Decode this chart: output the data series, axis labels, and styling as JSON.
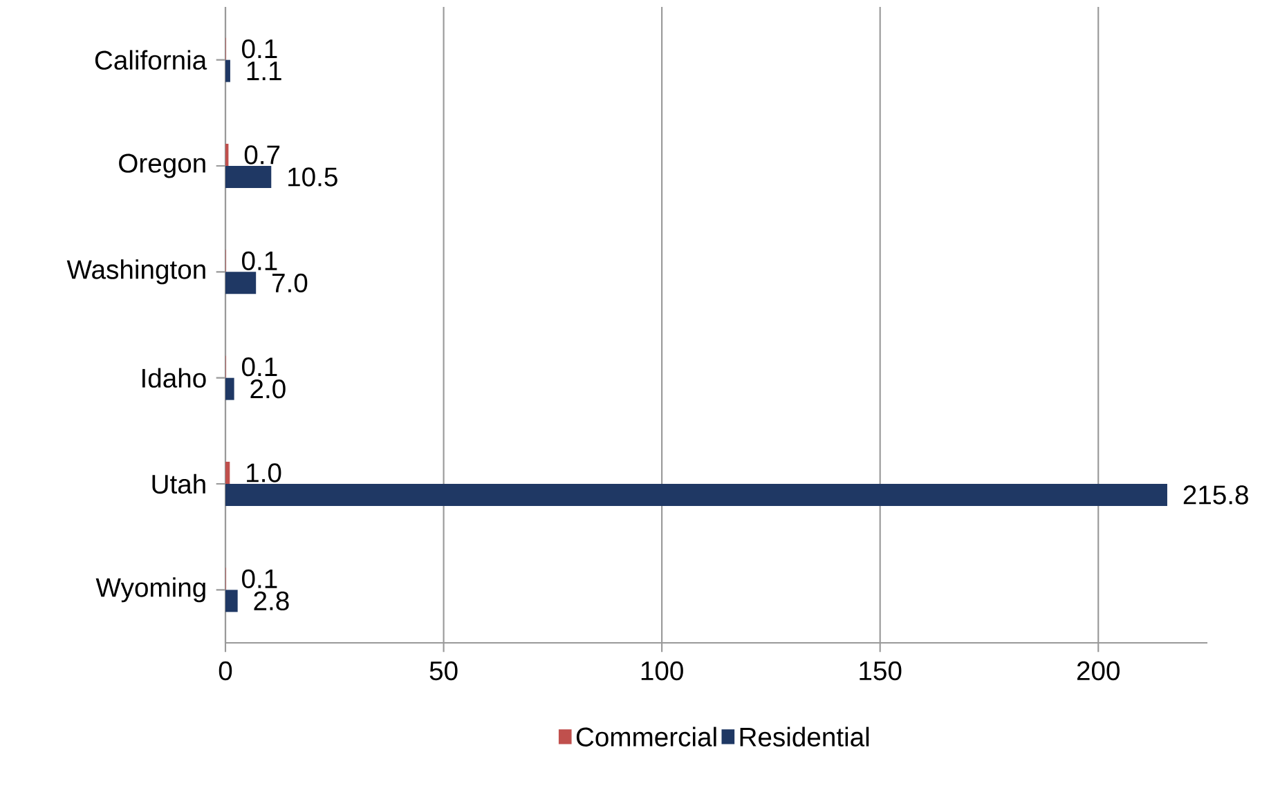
{
  "chart_data": {
    "type": "bar",
    "orientation": "horizontal",
    "categories": [
      "California",
      "Oregon",
      "Washington",
      "Idaho",
      "Utah",
      "Wyoming"
    ],
    "series": [
      {
        "name": "Commercial",
        "color": "#c0504d",
        "values": [
          0.1,
          0.7,
          0.1,
          0.1,
          1.0,
          0.1
        ],
        "value_labels": [
          "0.1",
          "0.7",
          "0.1",
          "0.1",
          "1.0",
          "0.1"
        ]
      },
      {
        "name": "Residential",
        "color": "#1f3864",
        "values": [
          1.1,
          10.5,
          7.0,
          2.0,
          215.8,
          2.8
        ],
        "value_labels": [
          "1.1",
          "10.5",
          "7.0",
          "2.0",
          "215.8",
          "2.8"
        ]
      }
    ],
    "xlim": [
      0,
      225
    ],
    "xticks": [
      0,
      50,
      100,
      150,
      200
    ],
    "grid": "x",
    "legend": "bottom"
  }
}
